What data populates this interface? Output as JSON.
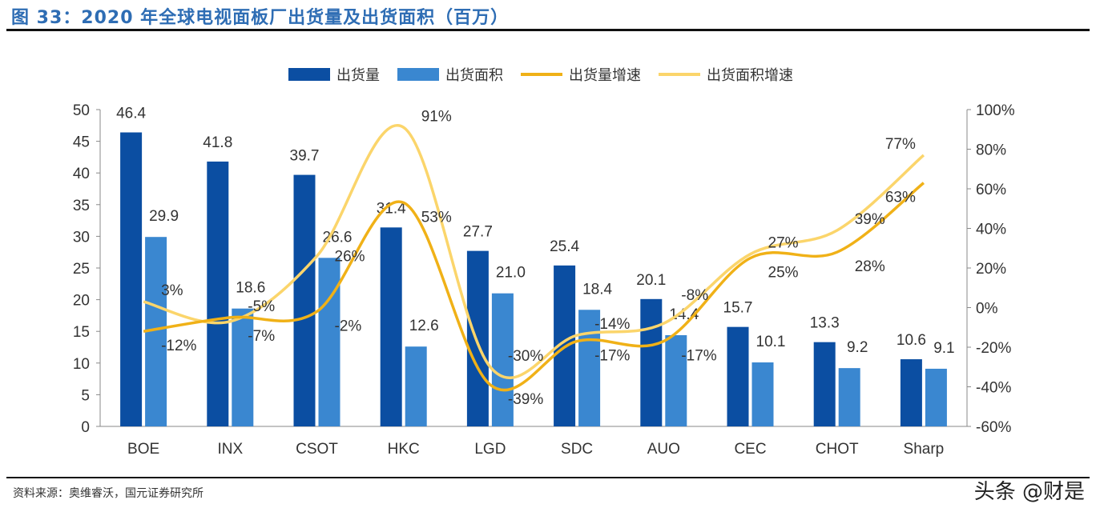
{
  "title": "图 33：2020 年全球电视面板厂出货量及出货面积（百万）",
  "source": "资料来源：奥维睿沃，国元证券研究所",
  "watermark": "头条 @财是",
  "chart_data": {
    "type": "bar+line",
    "categories": [
      "BOE",
      "INX",
      "CSOT",
      "HKC",
      "LGD",
      "SDC",
      "AUO",
      "CEC",
      "CHOT",
      "Sharp"
    ],
    "series": [
      {
        "name": "出货量",
        "type": "bar",
        "axis": "left",
        "color": "#0b4ea2",
        "values": [
          46.4,
          41.8,
          39.7,
          31.4,
          27.7,
          25.4,
          20.1,
          15.7,
          13.3,
          10.6
        ],
        "labels": [
          "46.4",
          "41.8",
          "39.7",
          "31.4",
          "27.7",
          "25.4",
          "20.1",
          "15.7",
          "13.3",
          "10.6"
        ]
      },
      {
        "name": "出货面积",
        "type": "bar",
        "axis": "left",
        "color": "#3a87d0",
        "values": [
          29.9,
          18.6,
          26.6,
          12.6,
          21.0,
          18.4,
          14.4,
          10.1,
          9.2,
          9.1
        ],
        "labels": [
          "29.9",
          "18.6",
          "26.6",
          "12.6",
          "21.0",
          "18.4",
          "14.4",
          "10.1",
          "9.2",
          "9.1"
        ]
      },
      {
        "name": "出货量增速",
        "type": "line",
        "axis": "right",
        "color": "#f0b117",
        "values": [
          -12,
          -5,
          -2,
          53,
          -39,
          -17,
          -17,
          25,
          28,
          63
        ],
        "labels": [
          "-12%",
          "-5%",
          "-2%",
          "53%",
          "-39%",
          "-17%",
          "-17%",
          "25%",
          "28%",
          "63%"
        ]
      },
      {
        "name": "出货面积增速",
        "type": "line",
        "axis": "right",
        "color": "#fbd56b",
        "values": [
          3,
          -7,
          26,
          91,
          -30,
          -14,
          -8,
          27,
          39,
          77
        ],
        "labels": [
          "3%",
          "-7%",
          "26%",
          "91%",
          "-30%",
          "-14%",
          "-8%",
          "27%",
          "39%",
          "77%"
        ]
      }
    ],
    "left_axis": {
      "min": 0,
      "max": 50,
      "step": 5,
      "ticks": [
        "0",
        "5",
        "10",
        "15",
        "20",
        "25",
        "30",
        "35",
        "40",
        "45",
        "50"
      ]
    },
    "right_axis": {
      "min": -60,
      "max": 100,
      "step": 20,
      "ticks": [
        "-60%",
        "-40%",
        "-20%",
        "0%",
        "20%",
        "40%",
        "60%",
        "80%",
        "100%"
      ]
    },
    "legend": "top",
    "grid": false
  }
}
